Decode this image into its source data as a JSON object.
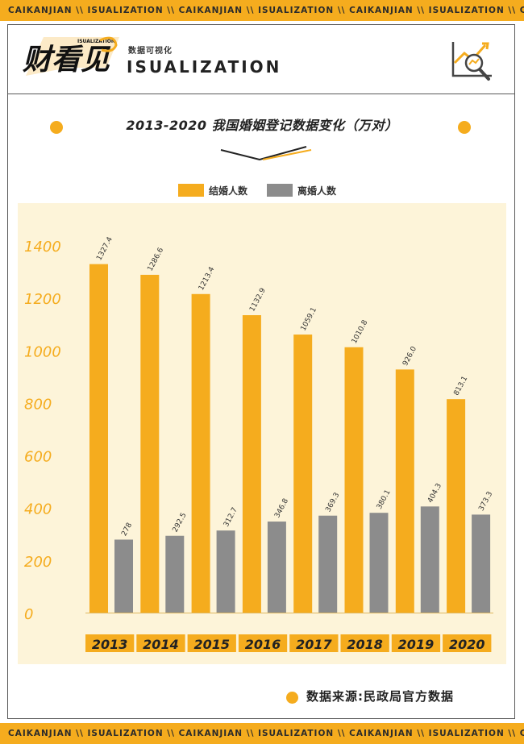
{
  "banner_text": "CAIKANJIAN \\\\ ISUALIZATION \\\\ CAIKANJIAN \\\\ ISUALIZATION \\\\ CAIKANJIAN \\\\ ISUALIZATION \\\\ CAIKAN",
  "brand": {
    "logo_text": "财看见",
    "logo_small": "ISUALIZATION",
    "subtitle": "数据可视化",
    "wordmark": "ISUALIZATION"
  },
  "colors": {
    "accent": "#f5ac1e",
    "marriage": "#f5ac1e",
    "divorce": "#8c8c8c",
    "plot_bg": "#fdf4d9",
    "axis_text": "#f5ac1e"
  },
  "icons": [
    "logo-mark",
    "chart-magnifier-icon"
  ],
  "source": "数据来源:民政局官方数据",
  "chart_data": {
    "type": "bar",
    "title": "2013-2020 我国婚姻登记数据变化（万对）",
    "categories": [
      "2013",
      "2014",
      "2015",
      "2016",
      "2017",
      "2018",
      "2019",
      "2020"
    ],
    "series": [
      {
        "name": "结婚人数",
        "values": [
          1327.4,
          1286.6,
          1213.4,
          1132.9,
          1059.1,
          1010.8,
          926.0,
          813.1
        ],
        "labels": [
          "1327.4",
          "1286.6",
          "1213.4",
          "1132.9",
          "1059.1",
          "1010.8",
          "926.0",
          "813.1"
        ]
      },
      {
        "name": "离婚人数",
        "values": [
          278,
          292.5,
          312.7,
          346.8,
          369.3,
          380.1,
          404.3,
          373.3
        ],
        "labels": [
          "278",
          "292.5",
          "312.7",
          "346.8",
          "369.3",
          "380.1",
          "404.3",
          "373.3"
        ]
      }
    ],
    "yticks": [
      0,
      200,
      400,
      600,
      800,
      1000,
      1200,
      1400
    ],
    "ylim": [
      0,
      1400
    ],
    "legend": "top-center",
    "grid": false
  }
}
